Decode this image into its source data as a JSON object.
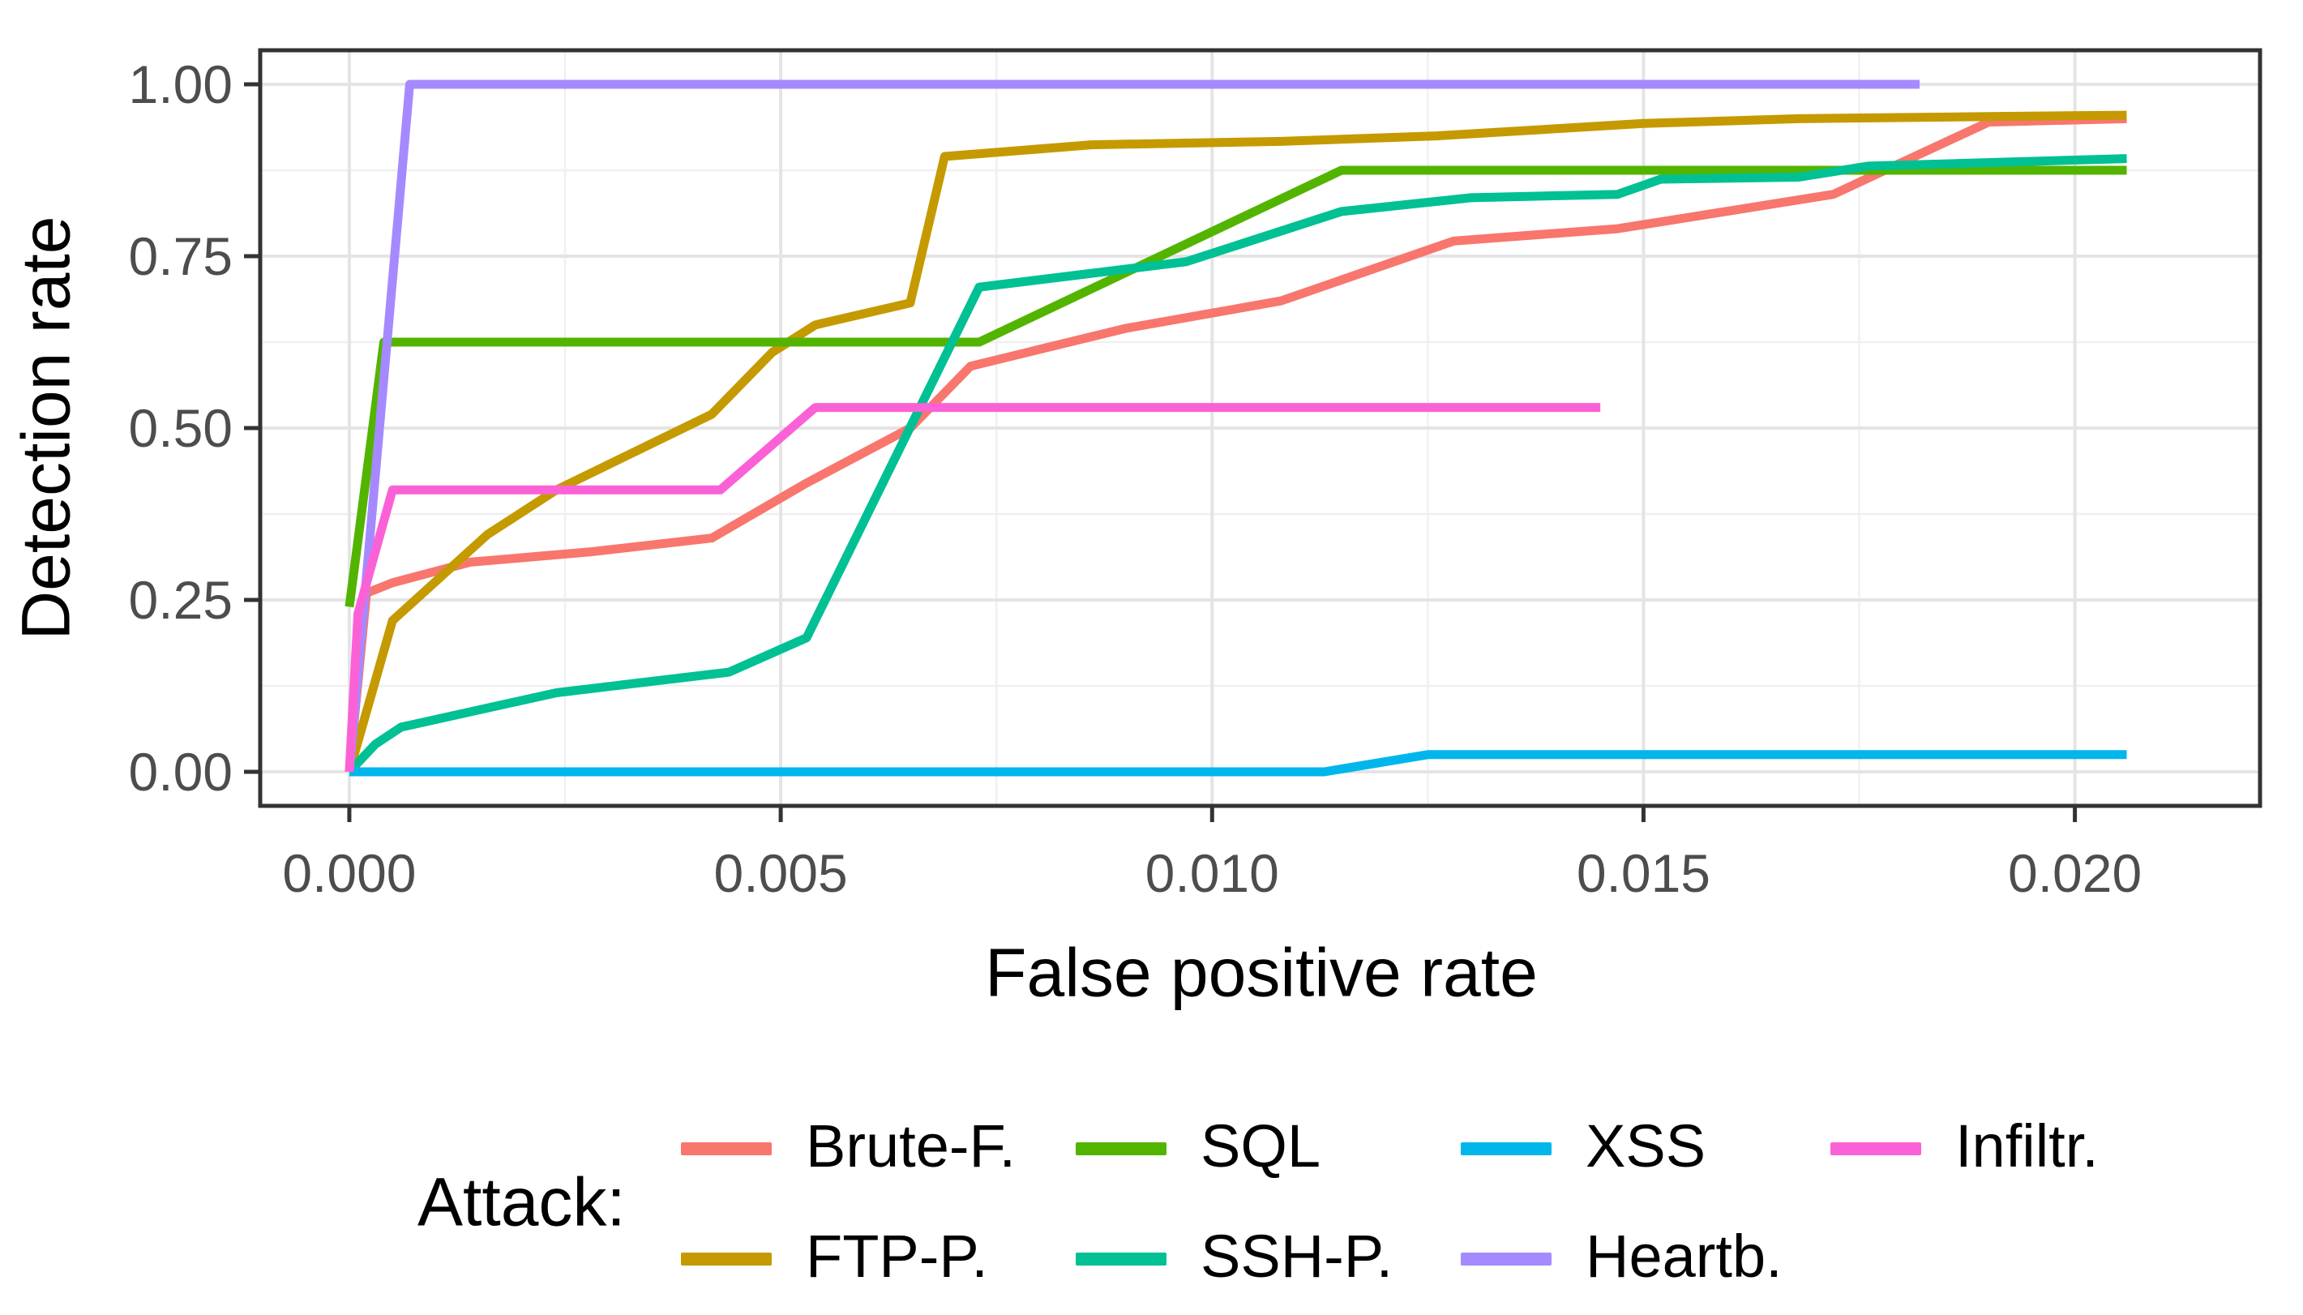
{
  "chart_data": {
    "type": "line",
    "title": "",
    "xlabel": "False positive rate",
    "ylabel": "Detection rate",
    "legend_title": "Attack:",
    "legend_position": "bottom",
    "grid": "major+minor",
    "xlim": [
      -0.001033,
      0.022146
    ],
    "ylim": [
      -0.0495,
      1.0495
    ],
    "x_ticks": {
      "values": [
        0,
        0.005,
        0.01,
        0.015,
        0.02
      ],
      "labels": [
        "0.000",
        "0.005",
        "0.010",
        "0.015",
        "0.020"
      ]
    },
    "y_ticks": {
      "values": [
        0,
        0.25,
        0.5,
        0.75,
        1.0
      ],
      "labels": [
        "0.00",
        "0.25",
        "0.50",
        "0.75",
        "1.00"
      ]
    },
    "x_minor_ticks": [
      0.0025,
      0.0075,
      0.0125,
      0.0175
    ],
    "y_minor_ticks": [
      0.125,
      0.375,
      0.625,
      0.875
    ],
    "theme": {
      "panel_background": "#FFFFFF",
      "grid_major_color": "#E4E4E4",
      "grid_minor_color": "#F0F0F0",
      "panel_border_color": "#333333",
      "tick_color": "#333333",
      "tick_label_color": "#4D4D4D",
      "text_color": "#000000"
    },
    "series": [
      {
        "name": "Brute-F.",
        "color": "#F8766D",
        "points": [
          [
            0,
            0
          ],
          [
            0.0002,
            0.26
          ],
          [
            0.0005,
            0.275
          ],
          [
            0.0014,
            0.305
          ],
          [
            0.0028,
            0.32
          ],
          [
            0.0042,
            0.34
          ],
          [
            0.0053,
            0.42
          ],
          [
            0.0065,
            0.5
          ],
          [
            0.0072,
            0.59
          ],
          [
            0.009,
            0.645
          ],
          [
            0.0108,
            0.685
          ],
          [
            0.0128,
            0.772
          ],
          [
            0.0147,
            0.79
          ],
          [
            0.0172,
            0.84
          ],
          [
            0.019,
            0.945
          ],
          [
            0.0206,
            0.95
          ]
        ]
      },
      {
        "name": "FTP-P.",
        "color": "#C49A00",
        "points": [
          [
            0,
            0
          ],
          [
            0.0005,
            0.22
          ],
          [
            0.0016,
            0.345
          ],
          [
            0.0024,
            0.41
          ],
          [
            0.0042,
            0.52
          ],
          [
            0.0049,
            0.61
          ],
          [
            0.0054,
            0.65
          ],
          [
            0.0065,
            0.682
          ],
          [
            0.0069,
            0.895
          ],
          [
            0.0086,
            0.912
          ],
          [
            0.0108,
            0.917
          ],
          [
            0.0126,
            0.925
          ],
          [
            0.015,
            0.943
          ],
          [
            0.0168,
            0.95
          ],
          [
            0.019,
            0.953
          ],
          [
            0.0206,
            0.955
          ]
        ]
      },
      {
        "name": "SQL",
        "color": "#53B400",
        "points": [
          [
            0,
            0.24
          ],
          [
            0.0004,
            0.625
          ],
          [
            0.0073,
            0.625
          ],
          [
            0.0115,
            0.875
          ],
          [
            0.0206,
            0.875
          ]
        ]
      },
      {
        "name": "SSH-P.",
        "color": "#00C094",
        "points": [
          [
            0,
            0
          ],
          [
            0.0003,
            0.04
          ],
          [
            0.0006,
            0.065
          ],
          [
            0.0024,
            0.115
          ],
          [
            0.0044,
            0.145
          ],
          [
            0.0053,
            0.195
          ],
          [
            0.0073,
            0.705
          ],
          [
            0.0097,
            0.742
          ],
          [
            0.0115,
            0.815
          ],
          [
            0.013,
            0.835
          ],
          [
            0.0147,
            0.84
          ],
          [
            0.0152,
            0.862
          ],
          [
            0.0168,
            0.865
          ],
          [
            0.0176,
            0.881
          ],
          [
            0.0206,
            0.892
          ]
        ]
      },
      {
        "name": "XSS",
        "color": "#00B6EB",
        "points": [
          [
            0,
            0
          ],
          [
            0.0113,
            0
          ],
          [
            0.0125,
            0.025
          ],
          [
            0.0206,
            0.025
          ]
        ]
      },
      {
        "name": "Heartb.",
        "color": "#A58AFF",
        "points": [
          [
            0,
            0
          ],
          [
            0.0007,
            1.0
          ],
          [
            0.0182,
            1.0
          ]
        ]
      },
      {
        "name": "Infiltr.",
        "color": "#FB61D7",
        "points": [
          [
            0,
            0
          ],
          [
            0.0001,
            0.23
          ],
          [
            0.0005,
            0.41
          ],
          [
            0.0043,
            0.41
          ],
          [
            0.0054,
            0.53
          ],
          [
            0.0145,
            0.53
          ]
        ]
      }
    ]
  }
}
